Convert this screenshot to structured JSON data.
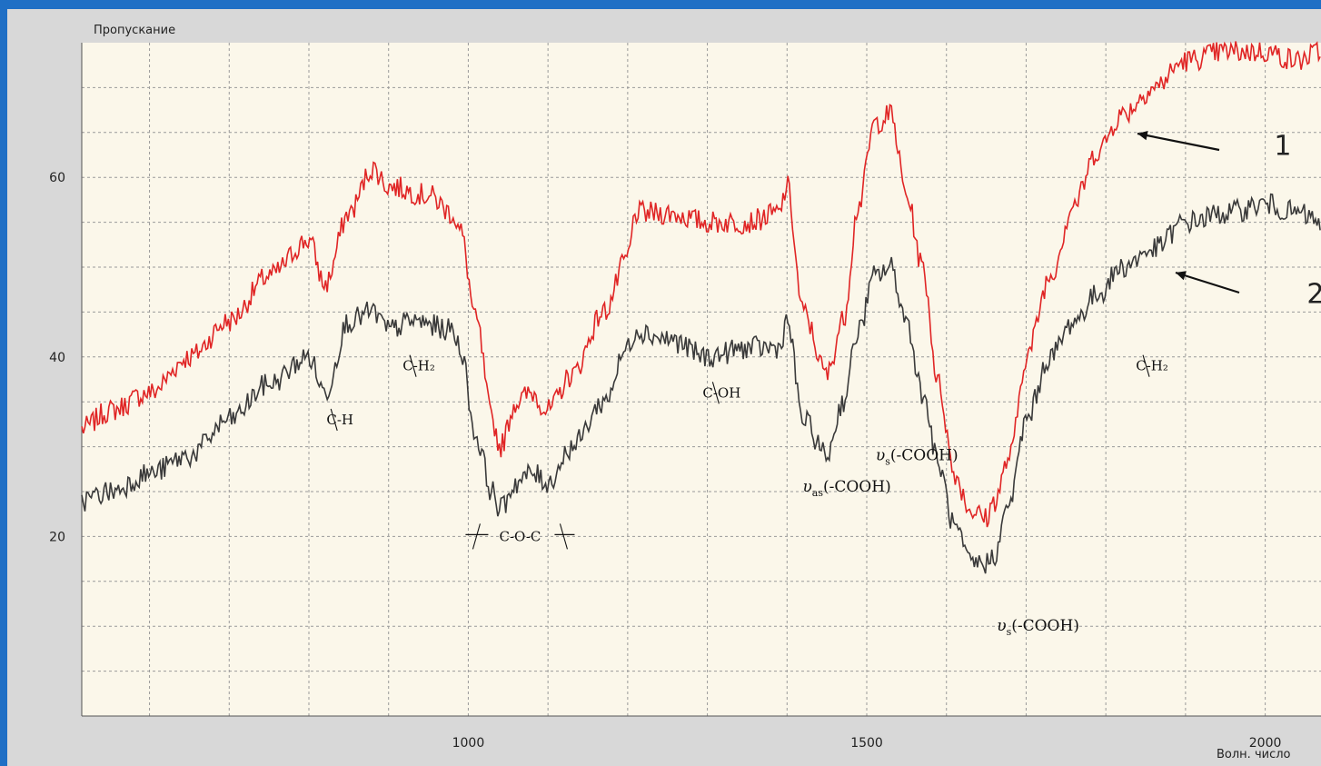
{
  "chart_data": {
    "type": "line",
    "ylabel": "Пропускание",
    "xlabel": "Волн. число",
    "xlim": [
      515,
      2070
    ],
    "ylim": [
      0,
      75
    ],
    "xticks": [
      1000,
      1500,
      2000
    ],
    "yticks": [
      20,
      40,
      60
    ],
    "grid": true,
    "colors": {
      "series1": "#e02525",
      "series2": "#3a3a3a",
      "grid": "#9a9a9a",
      "background": "#fbf7ea"
    },
    "series": [
      {
        "name": "1",
        "points": [
          [
            515,
            32
          ],
          [
            550,
            34
          ],
          [
            600,
            36
          ],
          [
            650,
            40
          ],
          [
            700,
            44
          ],
          [
            750,
            49
          ],
          [
            800,
            53
          ],
          [
            820,
            48
          ],
          [
            850,
            56
          ],
          [
            880,
            61
          ],
          [
            900,
            59
          ],
          [
            950,
            58
          ],
          [
            980,
            56
          ],
          [
            990,
            54
          ],
          [
            1010,
            44
          ],
          [
            1030,
            33
          ],
          [
            1040,
            30
          ],
          [
            1060,
            35
          ],
          [
            1080,
            36
          ],
          [
            1100,
            34
          ],
          [
            1130,
            38
          ],
          [
            1170,
            45
          ],
          [
            1200,
            51
          ],
          [
            1210,
            56
          ],
          [
            1250,
            56
          ],
          [
            1300,
            55
          ],
          [
            1350,
            55
          ],
          [
            1390,
            56
          ],
          [
            1400,
            59
          ],
          [
            1420,
            45
          ],
          [
            1450,
            38
          ],
          [
            1470,
            44
          ],
          [
            1490,
            57
          ],
          [
            1510,
            66
          ],
          [
            1530,
            67
          ],
          [
            1550,
            58
          ],
          [
            1570,
            50
          ],
          [
            1590,
            37
          ],
          [
            1610,
            27
          ],
          [
            1630,
            23
          ],
          [
            1650,
            22
          ],
          [
            1660,
            24
          ],
          [
            1680,
            29
          ],
          [
            1700,
            40
          ],
          [
            1730,
            49
          ],
          [
            1760,
            57
          ],
          [
            1790,
            63
          ],
          [
            1820,
            67
          ],
          [
            1860,
            70
          ],
          [
            1900,
            73
          ],
          [
            1950,
            74
          ],
          [
            2000,
            74
          ],
          [
            2040,
            73
          ],
          [
            2070,
            74
          ]
        ]
      },
      {
        "name": "2",
        "points": [
          [
            515,
            24
          ],
          [
            550,
            25
          ],
          [
            600,
            27
          ],
          [
            650,
            29
          ],
          [
            700,
            33
          ],
          [
            750,
            37
          ],
          [
            800,
            40
          ],
          [
            820,
            36
          ],
          [
            850,
            44
          ],
          [
            880,
            45
          ],
          [
            900,
            43
          ],
          [
            930,
            44
          ],
          [
            980,
            43
          ],
          [
            990,
            41
          ],
          [
            1010,
            31
          ],
          [
            1030,
            25
          ],
          [
            1040,
            23
          ],
          [
            1060,
            26
          ],
          [
            1080,
            27
          ],
          [
            1100,
            26
          ],
          [
            1130,
            30
          ],
          [
            1170,
            35
          ],
          [
            1200,
            41
          ],
          [
            1210,
            43
          ],
          [
            1250,
            42
          ],
          [
            1300,
            40
          ],
          [
            1350,
            41
          ],
          [
            1390,
            41
          ],
          [
            1400,
            44
          ],
          [
            1420,
            33
          ],
          [
            1450,
            29
          ],
          [
            1470,
            35
          ],
          [
            1490,
            43
          ],
          [
            1510,
            49
          ],
          [
            1530,
            50
          ],
          [
            1550,
            44
          ],
          [
            1570,
            36
          ],
          [
            1590,
            28
          ],
          [
            1610,
            21
          ],
          [
            1630,
            17
          ],
          [
            1650,
            17
          ],
          [
            1660,
            18
          ],
          [
            1680,
            24
          ],
          [
            1700,
            33
          ],
          [
            1730,
            40
          ],
          [
            1760,
            44
          ],
          [
            1790,
            47
          ],
          [
            1820,
            50
          ],
          [
            1860,
            52
          ],
          [
            1900,
            55
          ],
          [
            1950,
            56
          ],
          [
            2000,
            57
          ],
          [
            2040,
            56
          ],
          [
            2070,
            55
          ]
        ]
      }
    ],
    "annotations": [
      {
        "id": "ch",
        "formula": "C-H",
        "x": 839,
        "y": 33
      },
      {
        "id": "ch2a",
        "formula": "C-H₂",
        "x": 938,
        "y": 39
      },
      {
        "id": "coc",
        "formula": "C-O-C",
        "x": 1065,
        "y": 20
      },
      {
        "id": "coh",
        "formula": "C-OH",
        "x": 1318,
        "y": 36
      },
      {
        "id": "nuas",
        "nu": "υ",
        "sub": "as",
        "group": "(-COOH)",
        "x": 1475,
        "y": 25.5
      },
      {
        "id": "nus1",
        "nu": "υ",
        "sub": "s",
        "group": "(-COOH)",
        "x": 1563,
        "y": 29
      },
      {
        "id": "nus2",
        "nu": "υ",
        "sub": "s",
        "group": "(-COOH)",
        "x": 1715,
        "y": 10
      },
      {
        "id": "ch2b",
        "formula": "C-H₂",
        "x": 1858,
        "y": 39
      }
    ],
    "curve_labels": [
      {
        "text": "1",
        "x": 2022,
        "y": 63.5
      },
      {
        "text": "2",
        "x": 2063,
        "y": 47
      }
    ]
  }
}
